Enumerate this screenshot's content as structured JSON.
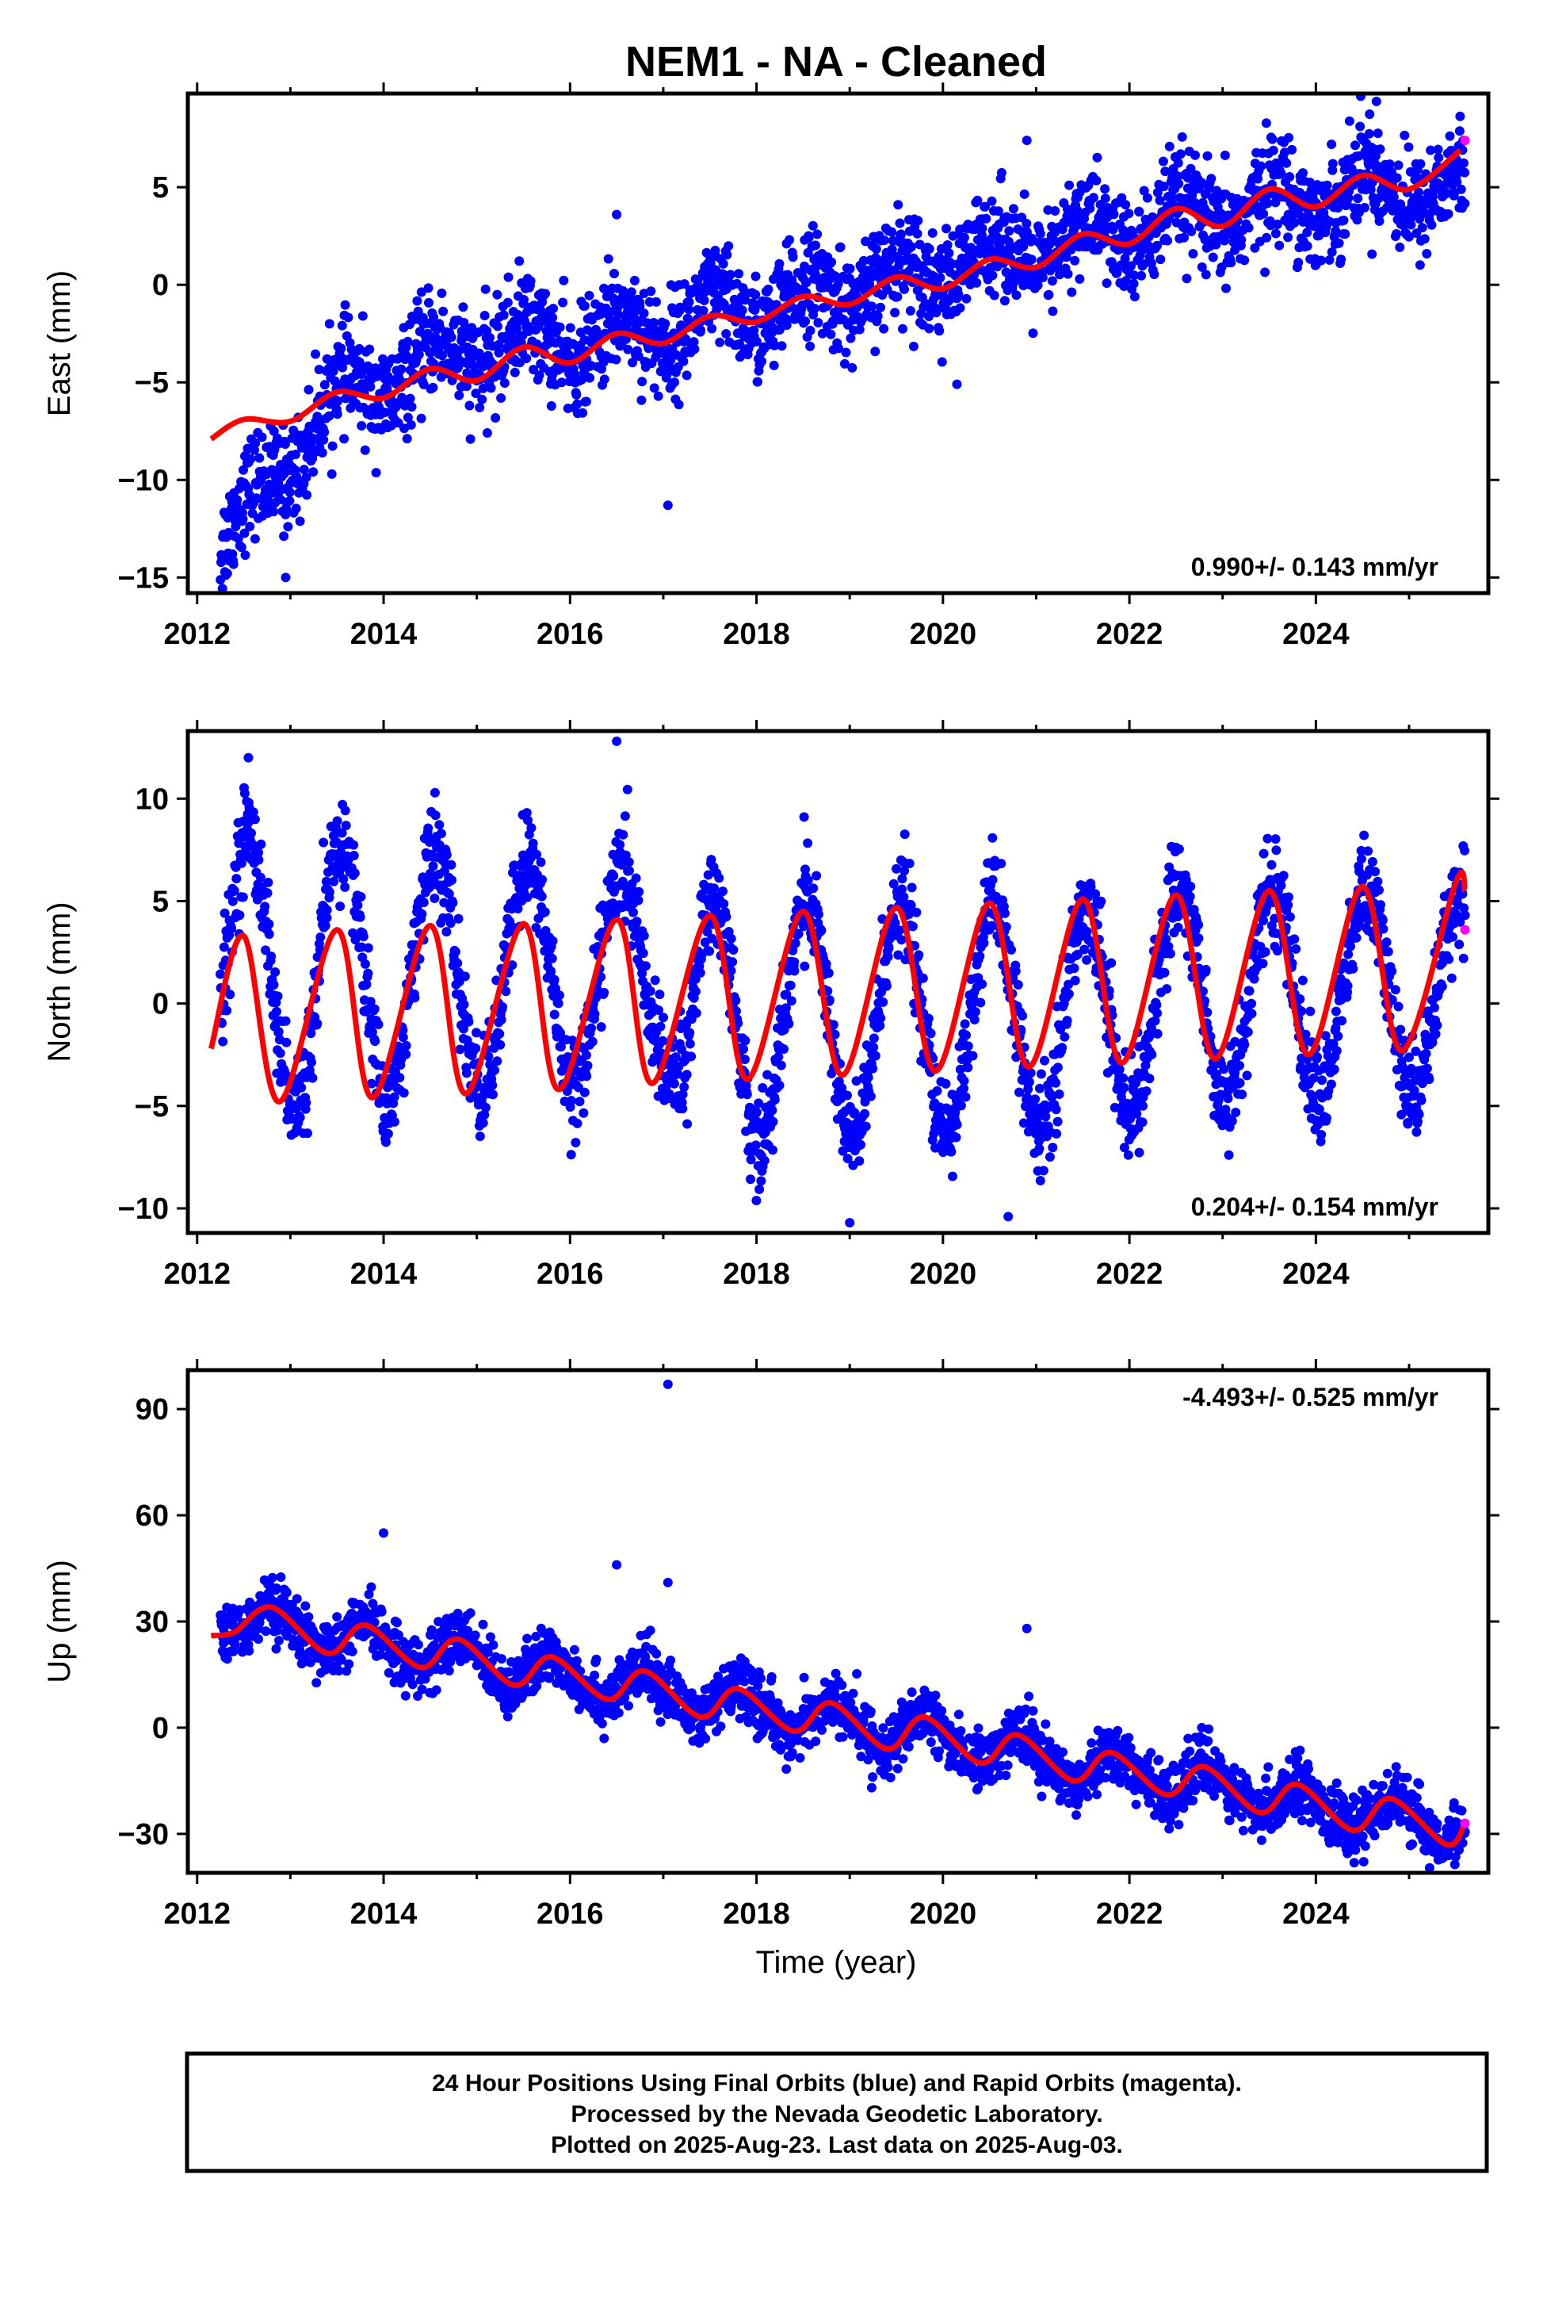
{
  "title": "NEM1  - NA - Cleaned",
  "colors": {
    "final_orbits": "#0000ff",
    "rapid_orbits": "#ff00ff",
    "model": "#ff0000",
    "frame": "#000000"
  },
  "x_tick_labels": [
    "2012",
    "2014",
    "2016",
    "2018",
    "2020",
    "2022",
    "2024"
  ],
  "x_axis_label": "Time (year)",
  "footer": {
    "line1": "24 Hour Positions Using Final Orbits (blue) and Rapid Orbits (magenta).",
    "line2": "Processed by the Nevada Geodetic Laboratory.",
    "line3": "Plotted on 2025-Aug-23. Last data on 2025-Aug-03."
  },
  "chart_data": [
    {
      "type": "scatter",
      "panel": "east",
      "ylabel": "East (mm)",
      "rate_text": "0.990+/- 0.143 mm/yr",
      "rate_value_mm_per_yr": 0.99,
      "rate_sigma_mm_per_yr": 0.143,
      "xlim": [
        2011.9,
        2025.85
      ],
      "ylim": [
        -15.8,
        9.8
      ],
      "x_ticks": [
        2012,
        2014,
        2016,
        2018,
        2020,
        2022,
        2024
      ],
      "y_ticks": [
        -15,
        -10,
        -5,
        0,
        5
      ],
      "grid": false,
      "data_range": [
        2012.25,
        2025.6
      ],
      "model": {
        "x": [
          2012.15,
          2012.5,
          2013.0,
          2013.5,
          2014.0,
          2014.5,
          2015.0,
          2015.5,
          2016.0,
          2016.5,
          2017.0,
          2017.5,
          2018.0,
          2018.5,
          2019.0,
          2019.5,
          2020.0,
          2020.5,
          2021.0,
          2021.5,
          2022.0,
          2022.5,
          2023.0,
          2023.5,
          2024.0,
          2024.5,
          2025.0,
          2025.55
        ],
        "y": [
          -7.9,
          -6.9,
          -7.0,
          -5.5,
          -5.8,
          -4.3,
          -4.9,
          -3.2,
          -4.0,
          -2.5,
          -3.0,
          -1.6,
          -1.9,
          -0.6,
          -1.0,
          0.4,
          -0.2,
          1.3,
          0.9,
          2.6,
          2.1,
          3.9,
          3.0,
          4.9,
          4.0,
          5.6,
          4.9,
          6.9
        ]
      },
      "final_orbit_trend": {
        "x": [
          2012.25,
          2012.6,
          2013.0,
          2013.5,
          2014.0,
          2014.5,
          2015.0,
          2015.5,
          2016.0,
          2016.5,
          2017.0,
          2017.5,
          2018.0,
          2018.5,
          2019.0,
          2019.5,
          2020.0,
          2020.5,
          2021.0,
          2021.5,
          2022.0,
          2022.5,
          2023.0,
          2023.5,
          2024.0,
          2024.5,
          2025.0,
          2025.55
        ],
        "y": [
          -13.5,
          -11.0,
          -9.0,
          -5.5,
          -5.2,
          -3.8,
          -3.5,
          -2.7,
          -3.3,
          -2.4,
          -2.4,
          -1.4,
          -1.5,
          -0.7,
          -0.3,
          0.5,
          0.7,
          1.6,
          1.5,
          2.6,
          2.5,
          3.4,
          3.4,
          4.3,
          4.3,
          5.2,
          4.8,
          5.0
        ]
      },
      "scatter_spread_mm": 1.3,
      "outliers": [
        {
          "x": 2016.5,
          "y": 3.6
        },
        {
          "x": 2017.05,
          "y": -11.3
        },
        {
          "x": 2020.15,
          "y": -5.1
        },
        {
          "x": 2020.9,
          "y": 7.4
        },
        {
          "x": 2024.65,
          "y": 9.4
        },
        {
          "x": 2012.95,
          "y": -15.0
        }
      ],
      "rapid_points": [
        {
          "x": 2025.6,
          "y": 7.4
        }
      ]
    },
    {
      "type": "scatter",
      "panel": "north",
      "ylabel": "North (mm)",
      "rate_text": "0.204+/- 0.154 mm/yr",
      "rate_value_mm_per_yr": 0.204,
      "rate_sigma_mm_per_yr": 0.154,
      "xlim": [
        2011.9,
        2025.85
      ],
      "ylim": [
        -11.2,
        13.3
      ],
      "x_ticks": [
        2012,
        2014,
        2016,
        2018,
        2020,
        2022,
        2024
      ],
      "y_ticks": [
        -10,
        -5,
        0,
        5,
        10
      ],
      "grid": false,
      "data_range": [
        2012.25,
        2025.6
      ],
      "model": {
        "x": [
          2012.15,
          2012.5,
          2012.88,
          2013.5,
          2013.88,
          2014.5,
          2014.88,
          2015.5,
          2015.88,
          2016.5,
          2016.88,
          2017.5,
          2017.9,
          2018.5,
          2018.92,
          2019.5,
          2019.92,
          2020.5,
          2020.92,
          2021.5,
          2021.92,
          2022.5,
          2022.92,
          2023.5,
          2023.92,
          2024.5,
          2024.92,
          2025.5,
          2025.6
        ],
        "y": [
          -2.2,
          3.3,
          -4.8,
          3.6,
          -4.6,
          3.8,
          -4.4,
          3.9,
          -4.2,
          4.1,
          -3.9,
          4.3,
          -3.7,
          4.5,
          -3.5,
          4.7,
          -3.3,
          4.9,
          -3.1,
          5.1,
          -2.9,
          5.3,
          -2.7,
          5.5,
          -2.5,
          5.7,
          -2.3,
          5.9,
          5.5
        ]
      },
      "seasonal_amplitude_mm": {
        "2012": 7.5,
        "2017": 5.0,
        "2019": 6.0,
        "2023": 4.2,
        "2025": 4.5
      },
      "scatter_spread_mm": 1.2,
      "outliers": [
        {
          "x": 2012.55,
          "y": 12.0
        },
        {
          "x": 2016.5,
          "y": 12.8
        },
        {
          "x": 2019.55,
          "y": 7.0
        },
        {
          "x": 2020.7,
          "y": -10.4
        },
        {
          "x": 2019.0,
          "y": -10.7
        }
      ],
      "rapid_points": [
        {
          "x": 2025.6,
          "y": 3.6
        }
      ]
    },
    {
      "type": "scatter",
      "panel": "up",
      "ylabel": "Up (mm)",
      "rate_text": "-4.493+/- 0.525 mm/yr",
      "rate_value_mm_per_yr": -4.493,
      "rate_sigma_mm_per_yr": 0.525,
      "xlim": [
        2011.9,
        2025.85
      ],
      "ylim": [
        -41,
        101
      ],
      "x_ticks": [
        2012,
        2014,
        2016,
        2018,
        2020,
        2022,
        2024
      ],
      "y_ticks": [
        -30,
        0,
        30,
        60,
        90
      ],
      "grid": false,
      "data_range": [
        2012.25,
        2025.6
      ],
      "model": {
        "x": [
          2012.15,
          2012.4,
          2012.8,
          2013.4,
          2013.8,
          2014.4,
          2014.8,
          2015.4,
          2015.8,
          2016.4,
          2016.8,
          2017.4,
          2017.8,
          2018.4,
          2018.8,
          2019.4,
          2019.8,
          2020.4,
          2020.8,
          2021.4,
          2021.8,
          2022.4,
          2022.8,
          2023.4,
          2023.8,
          2024.4,
          2024.8,
          2025.4,
          2025.6
        ],
        "y": [
          26,
          27,
          34,
          21,
          29,
          17,
          25,
          12,
          20,
          8,
          16,
          3,
          11,
          -1,
          7,
          -6,
          3,
          -10,
          -2,
          -15,
          -7,
          -19,
          -11,
          -24,
          -16,
          -29,
          -20,
          -33,
          -27
        ]
      },
      "scatter_spread_mm": 4.0,
      "outliers": [
        {
          "x": 2017.05,
          "y": 97
        },
        {
          "x": 2014.0,
          "y": 55
        },
        {
          "x": 2016.5,
          "y": 46
        },
        {
          "x": 2017.05,
          "y": 41
        },
        {
          "x": 2020.9,
          "y": 28
        }
      ],
      "rapid_points": [
        {
          "x": 2025.6,
          "y": -27
        }
      ]
    }
  ]
}
